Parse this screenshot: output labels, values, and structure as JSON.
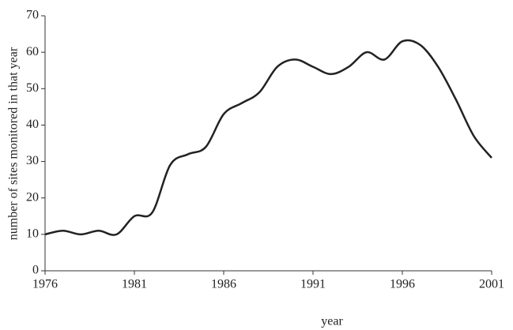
{
  "chart_data": {
    "type": "line",
    "x_label": "year",
    "y_label": "number of sites monitored in that year",
    "x": [
      1976,
      1977,
      1978,
      1979,
      1980,
      1981,
      1982,
      1983,
      1984,
      1985,
      1986,
      1987,
      1988,
      1989,
      1990,
      1991,
      1992,
      1993,
      1994,
      1995,
      1996,
      1997,
      1998,
      1999,
      2000,
      2001
    ],
    "series": [
      {
        "color": "#222222",
        "values": [
          10,
          11,
          10,
          11,
          10,
          15,
          16,
          29,
          32,
          34,
          43,
          46,
          49,
          56,
          58,
          56,
          54,
          56,
          60,
          58,
          63,
          62,
          56,
          47,
          37,
          31
        ]
      }
    ],
    "xlim": [
      1976,
      2001
    ],
    "xticks": [
      1976,
      1981,
      1986,
      1991,
      1996,
      2001
    ],
    "ylim": [
      0,
      70
    ],
    "yticks": [
      0,
      10,
      20,
      30,
      40,
      50,
      60,
      70
    ],
    "grid": false
  }
}
